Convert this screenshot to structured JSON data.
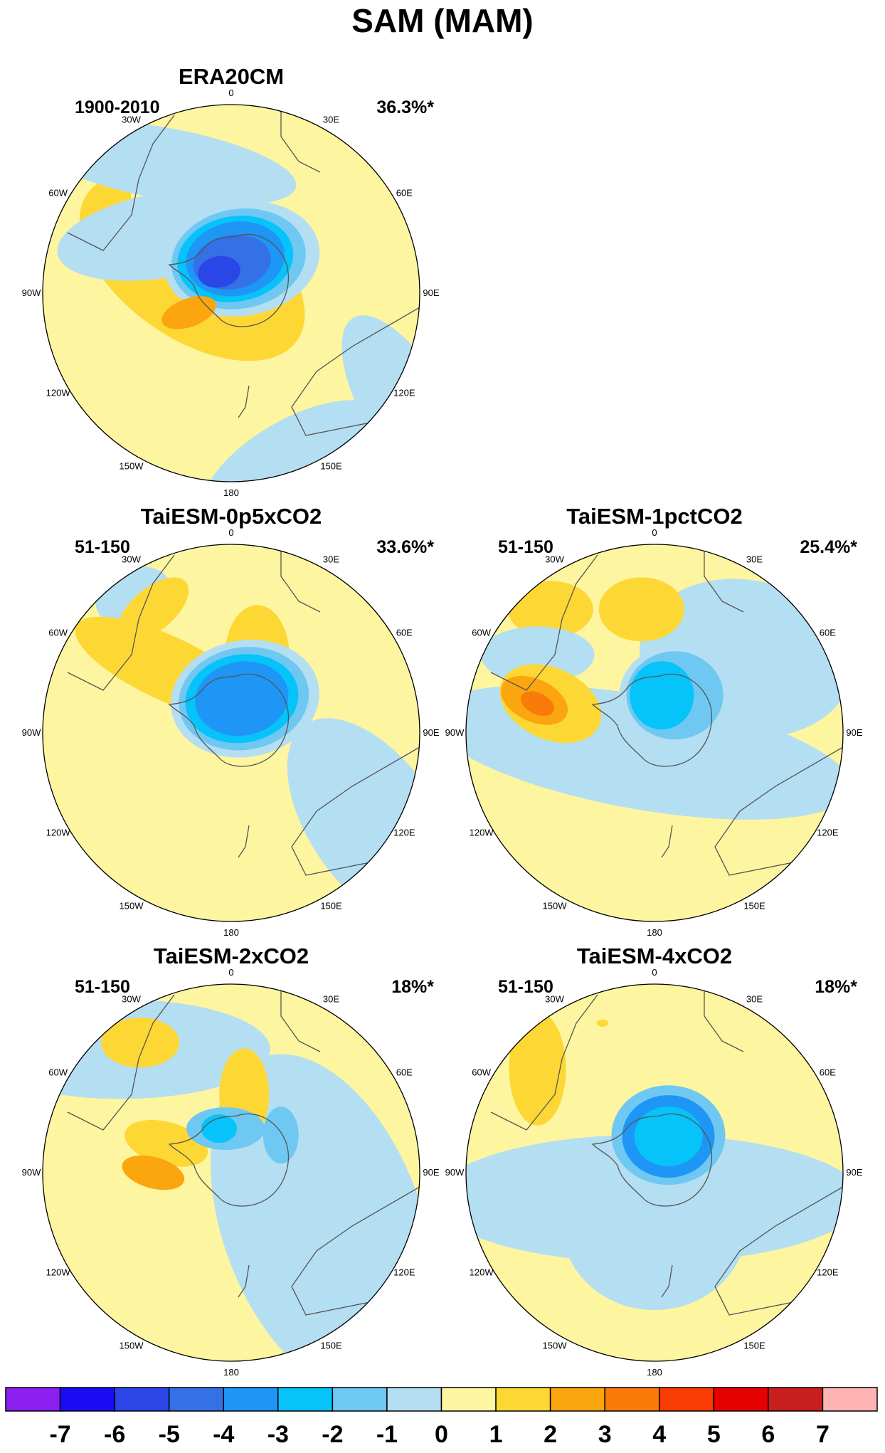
{
  "title": "SAM (MAM)",
  "panels": [
    {
      "title": "ERA20CM",
      "period": "1900-2010",
      "variance": "36.3%*",
      "slot": "top-left"
    },
    {
      "title": "TaiESM-0p5xCO2",
      "period": "51-150",
      "variance": "33.6%*",
      "slot": "middle-left"
    },
    {
      "title": "TaiESM-1pctCO2",
      "period": "51-150",
      "variance": "25.4%*",
      "slot": "middle-right"
    },
    {
      "title": "TaiESM-2xCO2",
      "period": "51-150",
      "variance": "18%*",
      "slot": "bottom-left"
    },
    {
      "title": "TaiESM-4xCO2",
      "period": "51-150",
      "variance": "18%*",
      "slot": "bottom-right"
    }
  ],
  "longitude_labels": [
    "0",
    "30E",
    "60E",
    "90E",
    "120E",
    "150E",
    "180",
    "150W",
    "120W",
    "90W",
    "60W",
    "30W"
  ],
  "colorbar": {
    "ticks": [
      "-7",
      "-6",
      "-5",
      "-4",
      "-3",
      "-2",
      "-1",
      "0",
      "1",
      "2",
      "3",
      "4",
      "5",
      "6",
      "7"
    ],
    "colors": [
      "#8a1ff0",
      "#1a0df5",
      "#2a46e6",
      "#3470e6",
      "#1e96f5",
      "#06c3fa",
      "#6ec8f2",
      "#b4def2",
      "#fdf5a0",
      "#fdd835",
      "#fca60f",
      "#fa7a0a",
      "#fa3c05",
      "#e60000",
      "#c81e1e",
      "#ffb4b4"
    ]
  }
}
